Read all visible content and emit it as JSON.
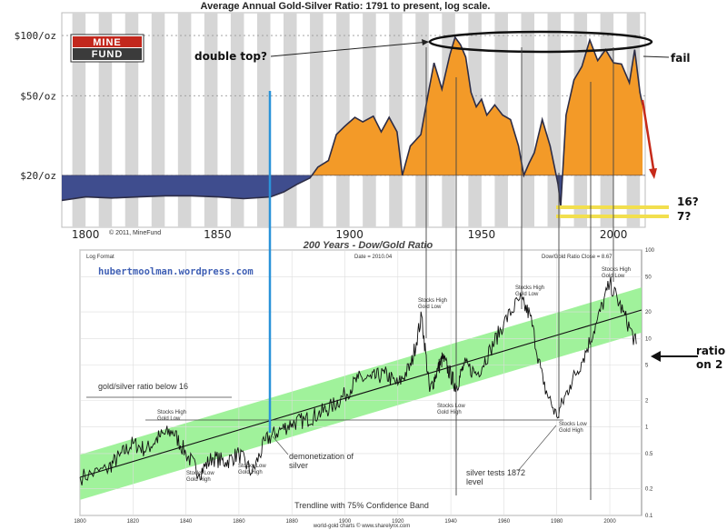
{
  "colors": {
    "above": "#f39a28",
    "below": "#3f4d8e",
    "band": "#8ff08a",
    "blue_line": "#2a93d9",
    "red_arrow": "#c62a1a",
    "yellow": "#f2df4e",
    "stripe": "#d6d6d6",
    "hubert": "#3f5fb4"
  },
  "top": {
    "title": "Average Annual Gold-Silver Ratio: 1791 to present, log scale.",
    "logo_line1": "MINE",
    "logo_line2": "FUND",
    "copyright": "© 2011, MineFund",
    "annotation_double_top": "double top?",
    "annotation_fail": "fail",
    "annotation_16": "16?",
    "annotation_7": "7?"
  },
  "bottom": {
    "title": "200 Years - Dow/Gold Ratio",
    "site": "hubertmoolman.wordpress.com",
    "log_format": "Log Format",
    "date_label": "Date = 2010.04",
    "close_label": "Dow/Gold Ratio Close = 8.67",
    "ratio_note": "gold/silver ratio below 16",
    "footer": "Trendline with 75% Confidence Band",
    "footer2": "world-gold charts © www.sharelynx.com",
    "ann_stocks_high_gold_low_1": "Stocks High\nGold Low",
    "ann_stocks_low_gold_high_1": "Stocks Low\nGold High",
    "ann_stocks_low_gold_high_2": "Stocks Low\nGold High",
    "ann_demonetization": "demonetization of\nsilver",
    "ann_stocks_high_gold_low_2": "Stocks High\nGold Low",
    "ann_stocks_low_gold_high_3": "Stocks Low\nGold High",
    "ann_stocks_high_gold_low_3": "Stocks High\nGold Low",
    "ann_silver_tests": "silver tests 1872\nlevel",
    "ann_stocks_low_gold_high_4": "Stocks Low\nGold High",
    "ann_stocks_high_gold_low_4": "Stocks High\nGold Low",
    "ann_right": "ratio\non 2"
  },
  "chart_data": [
    {
      "type": "area",
      "title": "Average Annual Gold-Silver Ratio: 1791 to present, log scale.",
      "x_ticks": [
        1800,
        1850,
        1900,
        1950,
        2000
      ],
      "y_ticks": [
        "$100/oz",
        "$50/oz",
        "$20/oz"
      ],
      "y_tick_values": [
        100,
        50,
        20
      ],
      "y_scale": "log",
      "baseline": 20,
      "xlim": [
        1791,
        2012
      ],
      "ylim": [
        11,
        130
      ],
      "x": [
        1791,
        1800,
        1810,
        1820,
        1830,
        1840,
        1850,
        1860,
        1870,
        1875,
        1880,
        1885,
        1888,
        1892,
        1895,
        1898,
        1902,
        1905,
        1909,
        1912,
        1915,
        1918,
        1920,
        1923,
        1927,
        1930,
        1932,
        1935,
        1938,
        1940,
        1942,
        1944,
        1946,
        1948,
        1950,
        1952,
        1955,
        1958,
        1961,
        1964,
        1966,
        1968,
        1970,
        1973,
        1976,
        1979,
        1980,
        1982,
        1985,
        1988,
        1991,
        1994,
        1997,
        2000,
        2003,
        2006,
        2008,
        2010,
        2011
      ],
      "values": [
        15.0,
        15.6,
        15.4,
        15.6,
        15.8,
        15.8,
        15.6,
        15.3,
        15.6,
        16.5,
        18.0,
        19.4,
        22.0,
        23.7,
        32.0,
        35.0,
        39.0,
        37.0,
        39.5,
        33.0,
        39.0,
        33.0,
        20.0,
        28.0,
        32.0,
        53.0,
        73.0,
        54.0,
        80.0,
        98.0,
        90.0,
        78.0,
        52.0,
        44.0,
        48.0,
        40.0,
        45.0,
        40.0,
        38.0,
        28.0,
        20.0,
        23.0,
        26.0,
        38.0,
        28.0,
        18.0,
        14.0,
        40.0,
        60.0,
        70.0,
        95.0,
        75.0,
        85.0,
        73.0,
        72.0,
        58.0,
        85.0,
        52.0,
        45.0
      ]
    },
    {
      "type": "line",
      "title": "200 Years - Dow/Gold Ratio",
      "subtitle": "Trendline with 75% Confidence Band",
      "x_ticks": [
        1800,
        1820,
        1840,
        1860,
        1880,
        1900,
        1920,
        1940,
        1960,
        1980,
        2000
      ],
      "y_ticks_right": [
        100,
        50,
        20,
        10,
        5,
        2,
        1,
        0.5,
        0.2,
        0.1
      ],
      "y_scale": "log",
      "xlim": [
        1800,
        2012
      ],
      "ylim": [
        0.1,
        100
      ],
      "x": [
        1800,
        1810,
        1815,
        1820,
        1825,
        1830,
        1835,
        1840,
        1845,
        1850,
        1855,
        1860,
        1865,
        1870,
        1875,
        1880,
        1885,
        1890,
        1895,
        1900,
        1905,
        1910,
        1915,
        1920,
        1925,
        1929,
        1932,
        1935,
        1937,
        1940,
        1942,
        1945,
        1950,
        1955,
        1960,
        1966,
        1970,
        1975,
        1980,
        1985,
        1990,
        1995,
        2000,
        2005,
        2010
      ],
      "values": [
        0.27,
        0.33,
        0.47,
        0.65,
        0.55,
        0.78,
        0.9,
        0.5,
        0.3,
        0.45,
        0.4,
        0.5,
        0.3,
        0.7,
        0.9,
        1.1,
        1.2,
        1.4,
        1.7,
        2.3,
        3.5,
        3.5,
        4.0,
        3.0,
        5.0,
        18.0,
        2.5,
        4.5,
        6.0,
        3.8,
        2.8,
        5.0,
        4.0,
        7.5,
        15.0,
        28.0,
        18.0,
        3.0,
        1.3,
        3.0,
        6.0,
        15.0,
        42.0,
        20.0,
        8.67
      ],
      "trend_x": [
        1800,
        2012
      ],
      "trend_y": [
        0.27,
        21.0
      ],
      "band_factor": 1.8
    }
  ]
}
